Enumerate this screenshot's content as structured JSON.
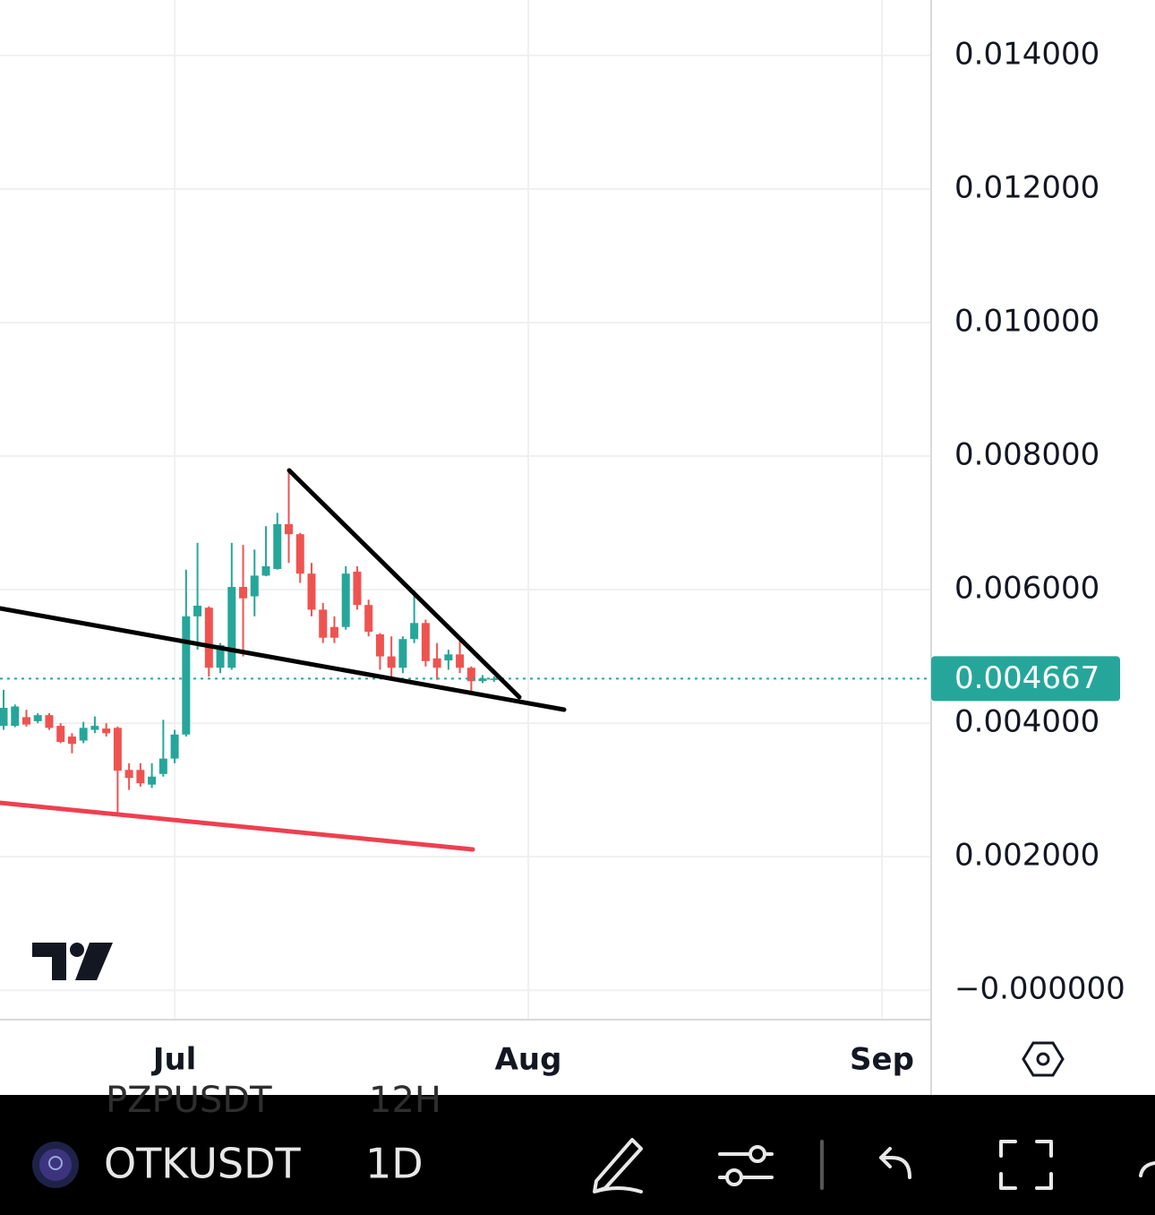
{
  "chart_data": {
    "type": "candlestick",
    "categories": [
      null,
      null,
      null,
      null,
      null,
      null,
      null,
      null,
      null,
      null,
      null,
      null,
      null,
      null,
      null,
      "Jul",
      null,
      null,
      null,
      null,
      null,
      null,
      null,
      null,
      null,
      null,
      null,
      null,
      null,
      null,
      null,
      null,
      null,
      null,
      null,
      null,
      null,
      null,
      null,
      null,
      null,
      null,
      null,
      null,
      null,
      null,
      "Aug",
      null,
      null,
      null,
      null,
      null,
      null,
      null,
      null,
      null,
      null,
      null,
      null,
      null,
      null,
      null,
      null,
      null,
      null,
      null,
      null,
      null,
      null,
      null,
      null,
      null,
      null,
      null,
      null,
      null,
      null,
      "Sep",
      null,
      null,
      null,
      null
    ],
    "open": [
      0.00396,
      0.00396,
      0.00409,
      0.00403,
      0.00412,
      0.00396,
      0.0038,
      0.00374,
      0.0039,
      0.00392,
      0.00393,
      0.0033,
      0.0033,
      0.00308,
      0.00324,
      0.00347,
      0.00383,
      0.0056,
      0.00573,
      0.00483,
      0.00483,
      0.00604,
      0.0059,
      0.00621,
      0.00631,
      0.00698,
      0.00683,
      0.00624,
      0.0057,
      0.00544,
      0.00544,
      0.00627,
      0.00577,
      0.00533,
      0.005,
      0.00483,
      0.00526,
      0.0055,
      0.00497,
      0.00494,
      0.00503,
      0.00483,
      0.00463,
      0.00465,
      null,
      null,
      null,
      null,
      null,
      null,
      null,
      null,
      null,
      null,
      null,
      null,
      null,
      null,
      null,
      null,
      null,
      null,
      null,
      null,
      null,
      null,
      null,
      null,
      null,
      null,
      null,
      null,
      null,
      null,
      null,
      null,
      null,
      null,
      null,
      null,
      null,
      null
    ],
    "high": [
      0.0045,
      0.00428,
      0.0042,
      0.00415,
      0.00415,
      0.004,
      0.00385,
      0.00402,
      0.0041,
      0.004,
      0.00395,
      0.0034,
      0.0034,
      0.0034,
      0.00405,
      0.0039,
      0.0063,
      0.0067,
      0.00575,
      0.0052,
      0.0067,
      0.00667,
      0.0066,
      0.00695,
      0.00715,
      0.0078,
      0.00685,
      0.0064,
      0.0058,
      0.0056,
      0.00635,
      0.00635,
      0.00585,
      0.00535,
      0.0053,
      0.0053,
      0.00599,
      0.00555,
      0.0052,
      0.0051,
      0.0053,
      0.00485,
      0.00472,
      0.0047,
      null,
      null,
      null,
      null,
      null,
      null,
      null,
      null,
      null,
      null,
      null,
      null,
      null,
      null,
      null,
      null,
      null,
      null,
      null,
      null,
      null,
      null,
      null,
      null,
      null,
      null,
      null,
      null,
      null,
      null,
      null,
      null,
      null,
      null,
      null,
      null,
      null,
      null
    ],
    "low": [
      0.0039,
      0.00394,
      0.00395,
      0.004,
      0.0039,
      0.0037,
      0.00355,
      0.0037,
      0.00385,
      0.0038,
      0.0026,
      0.003,
      0.00305,
      0.00303,
      0.0032,
      0.0034,
      0.0038,
      0.0051,
      0.0047,
      0.00475,
      0.0048,
      0.005,
      0.0056,
      0.0062,
      0.0063,
      0.0064,
      0.0061,
      0.0056,
      0.0052,
      0.0052,
      0.0054,
      0.0057,
      0.0053,
      0.0048,
      0.00465,
      0.00475,
      0.0052,
      0.00485,
      0.00465,
      0.0048,
      0.00475,
      0.00445,
      0.0046,
      0.00462,
      null,
      null,
      null,
      null,
      null,
      null,
      null,
      null,
      null,
      null,
      null,
      null,
      null,
      null,
      null,
      null,
      null,
      null,
      null,
      null,
      null,
      null,
      null,
      null,
      null,
      null,
      null,
      null,
      null,
      null,
      null,
      null,
      null,
      null,
      null,
      null,
      null,
      null
    ],
    "close": [
      0.00423,
      0.00425,
      0.00398,
      0.00412,
      0.00393,
      0.00372,
      0.00369,
      0.00393,
      0.00396,
      0.00385,
      0.00329,
      0.00318,
      0.0031,
      0.0032,
      0.00347,
      0.00383,
      0.0056,
      0.00576,
      0.00483,
      0.00517,
      0.00604,
      0.00587,
      0.00621,
      0.00635,
      0.00698,
      0.00683,
      0.00624,
      0.0057,
      0.00528,
      0.00528,
      0.00624,
      0.00577,
      0.00537,
      0.005,
      0.00483,
      0.00526,
      0.0055,
      0.00493,
      0.00483,
      0.00503,
      0.00483,
      0.00463,
      0.00467,
      0.004667,
      null,
      null,
      null,
      null,
      null,
      null,
      null,
      null,
      null,
      null,
      null,
      null,
      null,
      null,
      null,
      null,
      null,
      null,
      null,
      null,
      null,
      null,
      null,
      null,
      null,
      null,
      null,
      null,
      null,
      null,
      null,
      null,
      null,
      null,
      null,
      null,
      null,
      null
    ],
    "up_color": "#26a69a",
    "down_color": "#ef5350",
    "last_price": 0.004667,
    "ylim": [
      -0.00044,
      0.01483
    ],
    "yticks": [
      {
        "value": 0.014,
        "label": "0.014000"
      },
      {
        "value": 0.012,
        "label": "0.012000"
      },
      {
        "value": 0.01,
        "label": "0.010000"
      },
      {
        "value": 0.008,
        "label": "0.008000"
      },
      {
        "value": 0.006,
        "label": "0.006000"
      },
      {
        "value": 0.004,
        "label": "0.004000"
      },
      {
        "value": 0.002,
        "label": "0.002000"
      },
      {
        "value": 0,
        "label": "−0.000000"
      }
    ],
    "grid": true
  },
  "toolbar": {
    "symbol": "OTKUSDT",
    "interval": "1D",
    "ghost_symbol": "PZPUSDT",
    "ghost_interval": "12H"
  }
}
